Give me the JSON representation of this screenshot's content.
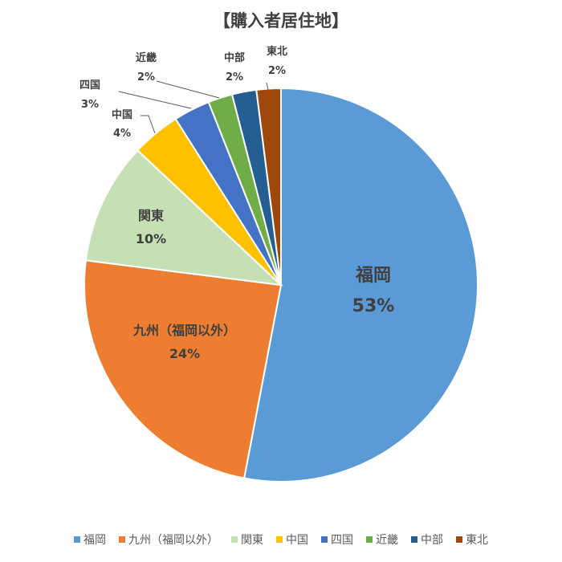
{
  "chart_data": {
    "type": "pie",
    "title": "【購入者居住地】",
    "categories": [
      "福岡",
      "九州（福岡以外）",
      "関東",
      "中国",
      "四国",
      "近畿",
      "中部",
      "東北"
    ],
    "values": [
      53,
      24,
      10,
      4,
      3,
      2,
      2,
      2
    ],
    "value_labels": [
      "53%",
      "24%",
      "10%",
      "4%",
      "3%",
      "2%",
      "2%",
      "2%"
    ],
    "colors": [
      "#5B9BD5",
      "#ED7D31",
      "#C5E0B4",
      "#FFC000",
      "#4472C4",
      "#70AD47",
      "#255E91",
      "#9E480E"
    ],
    "start_angle": "12 o'clock",
    "direction": "clockwise",
    "legend_position": "bottom"
  }
}
